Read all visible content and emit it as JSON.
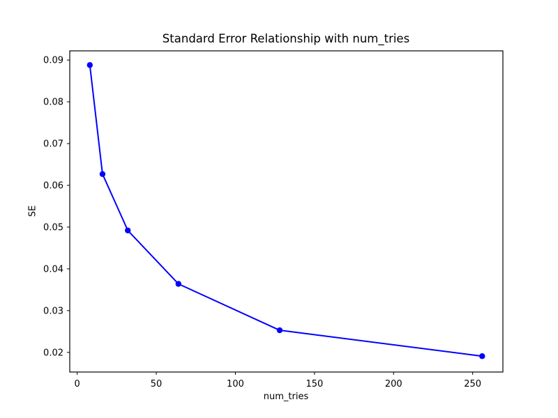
{
  "figure": {
    "title": "Standard Error Relationship with num_tries",
    "xlabel": "num_tries",
    "ylabel": "SE",
    "background": "#ffffff"
  },
  "chart_data": {
    "type": "line",
    "title": "Standard Error Relationship with num_tries",
    "xlabel": "num_tries",
    "ylabel": "SE",
    "series": [
      {
        "name": "SE",
        "x": [
          8,
          16,
          32,
          64,
          128,
          256
        ],
        "y": [
          0.0888,
          0.0627,
          0.0492,
          0.0364,
          0.0253,
          0.0191
        ]
      }
    ],
    "x_ticks": [
      0,
      50,
      100,
      150,
      200,
      250
    ],
    "x_tick_labels": [
      "0",
      "50",
      "100",
      "150",
      "200",
      "250"
    ],
    "y_ticks": [
      0.02,
      0.03,
      0.04,
      0.05,
      0.06,
      0.07,
      0.08,
      0.09
    ],
    "y_tick_labels": [
      "0.02",
      "0.03",
      "0.04",
      "0.05",
      "0.06",
      "0.07",
      "0.08",
      "0.09"
    ],
    "xlim": [
      -4.7,
      269.1
    ],
    "ylim": [
      0.0153,
      0.0922
    ],
    "grid": false,
    "legend": "none",
    "line_color": "#0000ff",
    "marker": "o",
    "marker_color": "#0000ff",
    "spine_color": "#000000",
    "background": "#ffffff"
  }
}
